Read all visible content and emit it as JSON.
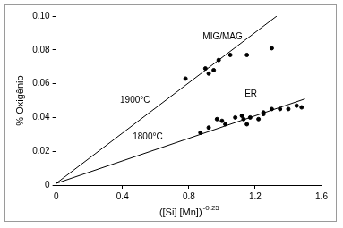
{
  "chart_data": {
    "type": "scatter",
    "x_label": "([Si] [Mn])",
    "x_label_superscript": "-0.25",
    "y_label": "% Oxigênio",
    "xlim": [
      0,
      1.6
    ],
    "xticks": [
      0,
      0.4,
      0.8,
      1.2,
      1.6
    ],
    "ylim": [
      0,
      0.1
    ],
    "yticks": [
      0,
      0.02,
      0.04,
      0.06,
      0.08,
      {
        "value": 0.1,
        "label": "0.10"
      }
    ],
    "grid": false,
    "series": [
      {
        "name": "MIG/MAG",
        "type": "scatter",
        "color": "#000000",
        "marker": "circle",
        "x": [
          0.78,
          0.9,
          0.92,
          0.95,
          0.98,
          1.05,
          1.15,
          1.3
        ],
        "values": [
          0.063,
          0.069,
          0.066,
          0.068,
          0.074,
          0.077,
          0.077,
          0.081
        ]
      },
      {
        "name": "1900°C",
        "type": "line",
        "color": "#000000",
        "line_style": "solid",
        "x": [
          0,
          1.33
        ],
        "values": [
          0.001,
          0.1
        ]
      },
      {
        "name": "ER",
        "type": "scatter",
        "color": "#000000",
        "marker": "circle",
        "x": [
          0.87,
          0.92,
          0.97,
          1.0,
          1.02,
          1.08,
          1.12,
          1.13,
          1.15,
          1.17,
          1.22,
          1.25,
          1.25,
          1.3,
          1.35,
          1.4,
          1.45,
          1.48
        ],
        "values": [
          0.031,
          0.034,
          0.039,
          0.038,
          0.036,
          0.04,
          0.041,
          0.039,
          0.036,
          0.04,
          0.039,
          0.042,
          0.043,
          0.045,
          0.045,
          0.045,
          0.047,
          0.046
        ]
      },
      {
        "name": "1800°C",
        "type": "line",
        "color": "#000000",
        "line_style": "solid",
        "x": [
          0,
          1.5
        ],
        "values": [
          0.001,
          0.051
        ]
      }
    ]
  }
}
